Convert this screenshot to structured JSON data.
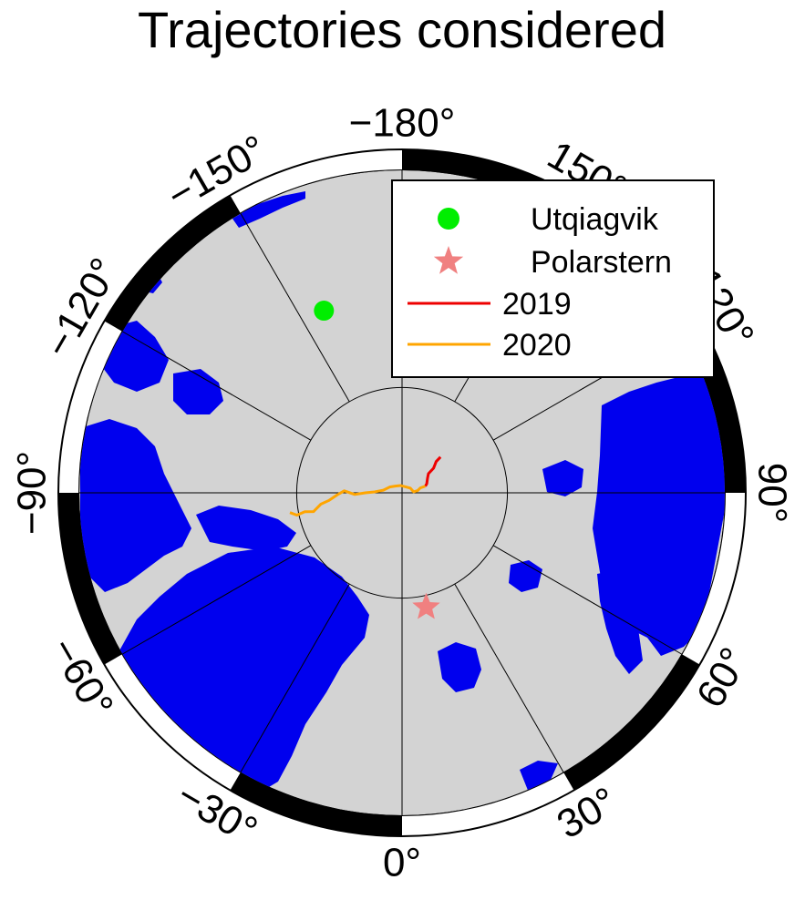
{
  "title": "Trajectories considered",
  "map": {
    "projection": "north-polar-stereographic",
    "central_meridian": 0,
    "min_latitude": 60,
    "meridian_step_deg": 30,
    "inner_circle_latitude": 80,
    "colors": {
      "ocean": "#d3d3d3",
      "land": "#0000ee",
      "frame_dark": "#000000",
      "frame_light": "#ffffff",
      "grid": "#000000"
    },
    "lon_labels": [
      {
        "lon": -180,
        "text": "−180°"
      },
      {
        "lon": 150,
        "text": "150°"
      },
      {
        "lon": 120,
        "text": "120°"
      },
      {
        "lon": 90,
        "text": "90°"
      },
      {
        "lon": 60,
        "text": "60°"
      },
      {
        "lon": 30,
        "text": "30°"
      },
      {
        "lon": 0,
        "text": "0°"
      },
      {
        "lon": -30,
        "text": "−30°"
      },
      {
        "lon": -60,
        "text": "−60°"
      },
      {
        "lon": -90,
        "text": "−90°"
      },
      {
        "lon": -120,
        "text": "−120°"
      },
      {
        "lon": -150,
        "text": "−150°"
      }
    ]
  },
  "markers": [
    {
      "name": "Utqiagvik",
      "lat": 71.3,
      "lon": -156.8,
      "symbol": "circle",
      "color": "#00ee00"
    },
    {
      "name": "Polarstern",
      "lat": 78.9,
      "lon": 11.9,
      "symbol": "star",
      "color": "#f08080"
    }
  ],
  "tracks": [
    {
      "name": "2019",
      "color": "#ee0000",
      "points": [
        [
          85.0,
          133.0
        ],
        [
          85.6,
          132.5
        ],
        [
          86.2,
          128.0
        ],
        [
          86.9,
          126.0
        ],
        [
          87.2,
          120.0
        ],
        [
          87.5,
          110.0
        ],
        [
          87.7,
          106.0
        ]
      ]
    },
    {
      "name": "2020",
      "color": "#ffa500",
      "points": [
        [
          87.7,
          106.0
        ],
        [
          88.2,
          105.0
        ],
        [
          88.5,
          98.0
        ],
        [
          88.9,
          95.0
        ],
        [
          89.1,
          120.0
        ],
        [
          89.3,
          190.0
        ],
        [
          89.1,
          225.0
        ],
        [
          88.7,
          245.0
        ],
        [
          88.2,
          262.0
        ],
        [
          87.4,
          268.0
        ],
        [
          86.5,
          270.0
        ],
        [
          85.5,
          272.0
        ],
        [
          84.5,
          268.0
        ],
        [
          83.8,
          272.0
        ],
        [
          83.0,
          276.0
        ],
        [
          82.2,
          278.0
        ],
        [
          81.4,
          282.0
        ],
        [
          80.6,
          281.0
        ],
        [
          79.8,
          282.0
        ],
        [
          79.2,
          280.0
        ]
      ]
    }
  ],
  "legend": {
    "placement": "top-right",
    "entries": [
      {
        "label": "Utqiagvik",
        "kind": "circle",
        "color": "#00ee00"
      },
      {
        "label": "Polarstern",
        "kind": "star",
        "color": "#f08080"
      },
      {
        "label": "2019",
        "kind": "line",
        "color": "#ee0000"
      },
      {
        "label": "2020",
        "kind": "line",
        "color": "#ffa500"
      }
    ]
  }
}
